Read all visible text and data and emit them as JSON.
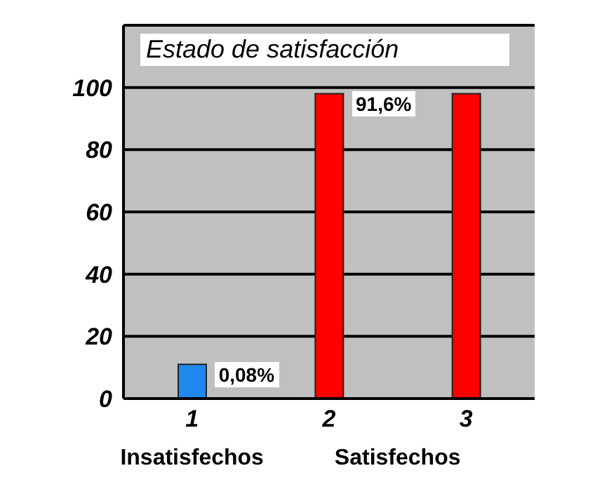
{
  "chart_data": {
    "type": "bar",
    "title": "Estado de satisfacción",
    "categories": [
      "1",
      "2",
      "3"
    ],
    "values": [
      11,
      98,
      98
    ],
    "colors": [
      "#1e88f0",
      "#ff0000",
      "#ff0000"
    ],
    "annotations": [
      {
        "text": "0,08%",
        "x": "1",
        "y": 11
      },
      {
        "text": "91,6%",
        "x": "2",
        "y": 98
      },
      "Insatisfechos",
      "Satisfechos"
    ],
    "ylim": [
      0,
      120
    ],
    "yticks": [
      0,
      20,
      40,
      60,
      80,
      100
    ],
    "grid": "y"
  }
}
